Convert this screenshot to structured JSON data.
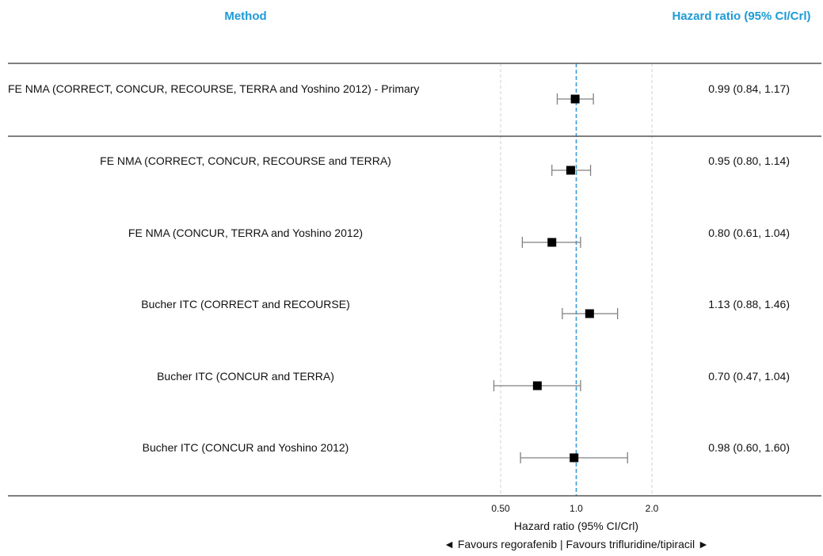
{
  "chart_data": {
    "type": "forest",
    "header": {
      "method_label": "Method",
      "estimate_label": "Hazard ratio (95% CI/Crl)",
      "color": "#1e9ad6"
    },
    "rows": [
      {
        "label": "FE NMA (CORRECT, CONCUR, RECOURSE, TERRA and Yoshino 2012) - Primary",
        "hr": 0.99,
        "lo": 0.84,
        "hi": 1.17,
        "text": "0.99 (0.84, 1.17)",
        "group": "primary"
      },
      {
        "label": "FE NMA (CORRECT, CONCUR, RECOURSE and TERRA)",
        "hr": 0.95,
        "lo": 0.8,
        "hi": 1.14,
        "text": "0.95 (0.80, 1.14)",
        "group": "sensitivity"
      },
      {
        "label": "FE NMA (CONCUR, TERRA and Yoshino 2012)",
        "hr": 0.8,
        "lo": 0.61,
        "hi": 1.04,
        "text": "0.80 (0.61, 1.04)",
        "group": "sensitivity"
      },
      {
        "label": "Bucher ITC (CORRECT and RECOURSE)",
        "hr": 1.13,
        "lo": 0.88,
        "hi": 1.46,
        "text": "1.13 (0.88, 1.46)",
        "group": "sensitivity"
      },
      {
        "label": "Bucher ITC (CONCUR and TERRA)",
        "hr": 0.7,
        "lo": 0.47,
        "hi": 1.04,
        "text": "0.70 (0.47, 1.04)",
        "group": "sensitivity"
      },
      {
        "label": "Bucher ITC (CONCUR and Yoshino 2012)",
        "hr": 0.98,
        "lo": 0.6,
        "hi": 1.6,
        "text": "0.98 (0.60, 1.60)",
        "group": "sensitivity"
      }
    ],
    "x_axis": {
      "scale": "log",
      "xlim": [
        0.43,
        2.0
      ],
      "ticks": [
        0.5,
        1.0,
        2.0
      ],
      "tick_labels": [
        "0.50",
        "1.0",
        "2.0"
      ],
      "reference_line": 1.0,
      "xlabel": "Hazard ratio (95% CI/Crl)",
      "direction_note": "◄ Favours regorafenib | Favours trifluridine/tipiracil ►",
      "grid": true
    },
    "colors": {
      "reference_line": "#3d9ad6",
      "grid": "#d0d0d0",
      "marker": "#000000",
      "whisker": "#808080",
      "rule": "#555555"
    }
  }
}
